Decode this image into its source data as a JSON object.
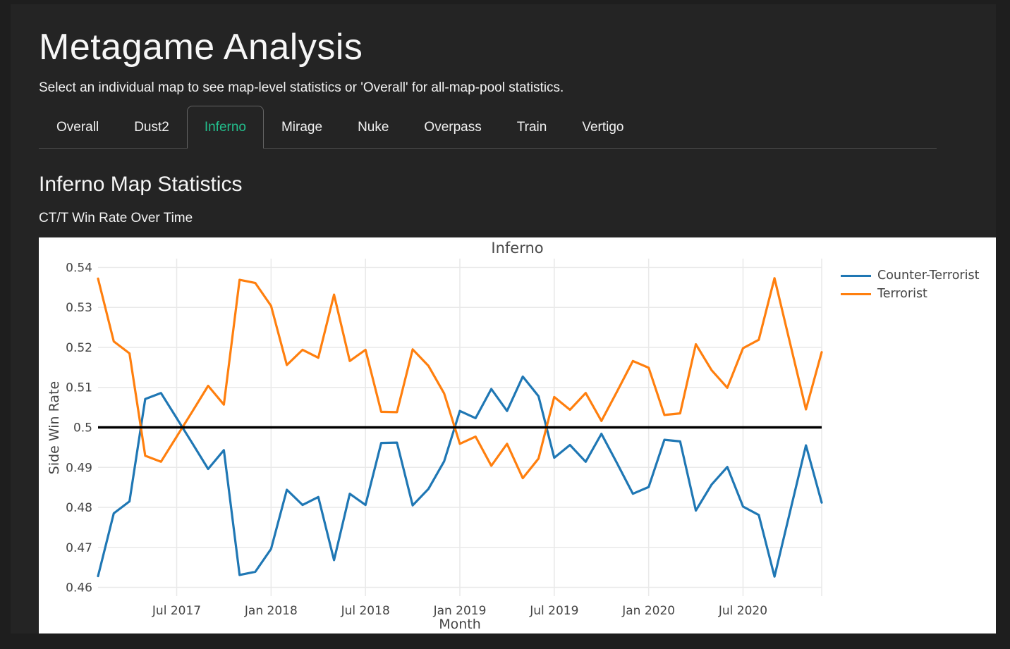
{
  "page": {
    "title": "Metagame Analysis",
    "subtitle": "Select an individual map to see map-level statistics or 'Overall' for all-map-pool statistics."
  },
  "tabs": [
    {
      "label": "Overall",
      "active": false
    },
    {
      "label": "Dust2",
      "active": false
    },
    {
      "label": "Inferno",
      "active": true
    },
    {
      "label": "Mirage",
      "active": false
    },
    {
      "label": "Nuke",
      "active": false
    },
    {
      "label": "Overpass",
      "active": false
    },
    {
      "label": "Train",
      "active": false
    },
    {
      "label": "Vertigo",
      "active": false
    }
  ],
  "section": {
    "heading": "Inferno Map Statistics",
    "subheading": "CT/T Win Rate Over Time"
  },
  "colors": {
    "active_tab_accent": "#23be8c",
    "ct_line": "#1f77b4",
    "t_line": "#ff7f0e",
    "reference_line": "#000000",
    "chart_text": "#444444",
    "gridline": "#e9e9e9"
  },
  "chart_data": {
    "type": "line",
    "title": "Inferno",
    "xlabel": "Month",
    "ylabel": "Side Win Rate",
    "grid": true,
    "legend_position": "top-right-outside",
    "ylim": [
      0.4578,
      0.5422
    ],
    "y_ticks": [
      0.46,
      0.47,
      0.48,
      0.49,
      0.5,
      0.51,
      0.52,
      0.53,
      0.54
    ],
    "y_tick_labels": [
      "0.46",
      "0.47",
      "0.48",
      "0.49",
      "0.5",
      "0.51",
      "0.52",
      "0.53",
      "0.54"
    ],
    "x_tick_indices": [
      5,
      11,
      17,
      23,
      29,
      35,
      41
    ],
    "x_tick_labels": [
      "Jul 2017",
      "Jan 2018",
      "Jul 2018",
      "Jan 2019",
      "Jul 2019",
      "Jan 2020",
      "Jul 2020"
    ],
    "x": [
      "Feb 2017",
      "Mar 2017",
      "Apr 2017",
      "May 2017",
      "Jun 2017",
      "Jul 2017",
      "Aug 2017",
      "Sep 2017",
      "Oct 2017",
      "Nov 2017",
      "Dec 2017",
      "Jan 2018",
      "Feb 2018",
      "Mar 2018",
      "Apr 2018",
      "May 2018",
      "Jun 2018",
      "Jul 2018",
      "Aug 2018",
      "Sep 2018",
      "Oct 2018",
      "Nov 2018",
      "Dec 2018",
      "Jan 2019",
      "Feb 2019",
      "Mar 2019",
      "Apr 2019",
      "May 2019",
      "Jun 2019",
      "Jul 2019",
      "Aug 2019",
      "Sep 2019",
      "Oct 2019",
      "Nov 2019",
      "Dec 2019",
      "Jan 2020",
      "Feb 2020",
      "Mar 2020",
      "Apr 2020",
      "May 2020",
      "Jun 2020",
      "Jul 2020",
      "Aug 2020",
      "Sep 2020",
      "Oct 2020",
      "Nov 2020",
      "Dec 2020"
    ],
    "series": [
      {
        "name": "Counter-Terrorist",
        "color": "#1f77b4",
        "values": [
          0.4628,
          0.4785,
          0.4815,
          0.5071,
          0.5086,
          0.5023,
          0.496,
          0.4896,
          0.4943,
          0.4631,
          0.4639,
          0.4696,
          0.4844,
          0.4806,
          0.4826,
          0.4668,
          0.4834,
          0.4806,
          0.4961,
          0.4962,
          0.4805,
          0.4846,
          0.4915,
          0.5041,
          0.5023,
          0.5096,
          0.5041,
          0.5127,
          0.5078,
          0.4924,
          0.4956,
          0.4914,
          0.4984,
          0.491,
          0.4834,
          0.4851,
          0.4969,
          0.4965,
          0.4792,
          0.4857,
          0.4901,
          0.4802,
          0.4781,
          0.4627,
          0.4791,
          0.4955,
          0.4812
        ]
      },
      {
        "name": "Terrorist",
        "color": "#ff7f0e",
        "values": [
          0.5372,
          0.5215,
          0.5185,
          0.4929,
          0.4914,
          0.4977,
          0.504,
          0.5104,
          0.5057,
          0.5369,
          0.5361,
          0.5304,
          0.5156,
          0.5194,
          0.5174,
          0.5332,
          0.5166,
          0.5194,
          0.5039,
          0.5038,
          0.5195,
          0.5154,
          0.5085,
          0.4959,
          0.4977,
          0.4904,
          0.4959,
          0.4873,
          0.4922,
          0.5076,
          0.5044,
          0.5086,
          0.5016,
          0.509,
          0.5166,
          0.5149,
          0.5031,
          0.5035,
          0.5208,
          0.5143,
          0.5099,
          0.5198,
          0.5219,
          0.5373,
          0.5209,
          0.5045,
          0.5188
        ]
      }
    ],
    "reference_line": {
      "y": 0.5,
      "color": "#000000"
    }
  }
}
